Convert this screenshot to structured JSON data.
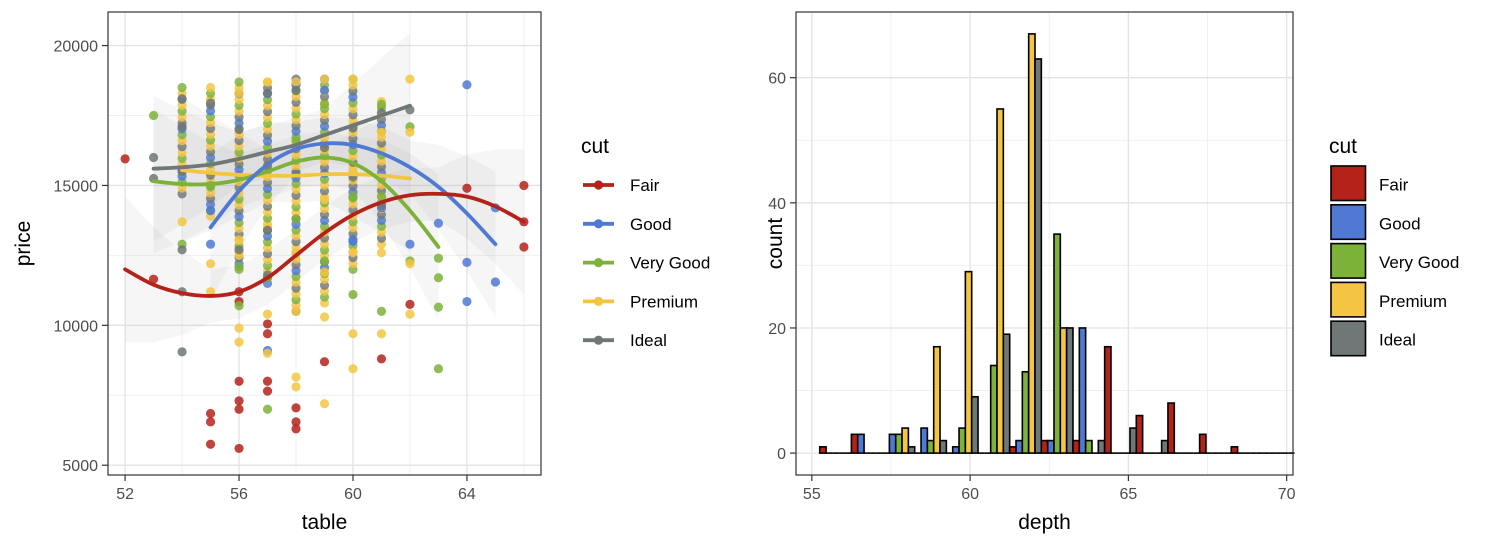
{
  "figure": {
    "legend_title": "cut"
  },
  "palette": {
    "Fair": "#B5221A",
    "Good": "#4F79D3",
    "Very Good": "#7CB13A",
    "Premium": "#F4C542",
    "Ideal": "#6F7777"
  },
  "chart_data": [
    {
      "type": "scatter",
      "panel": "left",
      "title": "",
      "xlabel": "table",
      "ylabel": "price",
      "xlim": [
        51.4,
        66.6
      ],
      "ylim": [
        4650,
        21200
      ],
      "xticks": [
        52,
        56,
        60,
        64
      ],
      "yticks": [
        5000,
        10000,
        15000,
        20000
      ],
      "grid": true,
      "legend": {
        "title": "cut",
        "position": "right",
        "entries": [
          "Fair",
          "Good",
          "Very Good",
          "Premium",
          "Ideal"
        ]
      },
      "series": [
        {
          "name": "Fair",
          "points": [
            [
              52,
              15950
            ],
            [
              53,
              11650
            ],
            [
              55,
              6850
            ],
            [
              55,
              6550
            ],
            [
              55,
              5750
            ],
            [
              56,
              10850
            ],
            [
              56,
              8000
            ],
            [
              56,
              7300
            ],
            [
              56,
              7000
            ],
            [
              56,
              5600
            ],
            [
              56,
              11200
            ],
            [
              57,
              10050
            ],
            [
              57,
              9700
            ],
            [
              57,
              8000
            ],
            [
              57,
              7650
            ],
            [
              58,
              7050
            ],
            [
              58,
              6550
            ],
            [
              58,
              6300
            ],
            [
              59,
              8700
            ],
            [
              61,
              8800
            ],
            [
              62,
              10750
            ],
            [
              64,
              14900
            ],
            [
              66,
              15000
            ],
            [
              66,
              13700
            ],
            [
              66,
              12800
            ]
          ],
          "smooth": [
            [
              52,
              12000
            ],
            [
              53,
              11450
            ],
            [
              54,
              11150
            ],
            [
              55,
              11050
            ],
            [
              56,
              11200
            ],
            [
              57,
              11700
            ],
            [
              58,
              12500
            ],
            [
              59,
              13300
            ],
            [
              60,
              13950
            ],
            [
              61,
              14400
            ],
            [
              62,
              14650
            ],
            [
              63,
              14700
            ],
            [
              64,
              14600
            ],
            [
              65,
              14250
            ],
            [
              66,
              13700
            ]
          ]
        },
        {
          "name": "Good",
          "points": [
            [
              55,
              14100
            ],
            [
              55,
              12900
            ],
            [
              57,
              9100
            ],
            [
              58,
              18650
            ],
            [
              59,
              18400
            ],
            [
              60,
              13000
            ],
            [
              61,
              14200
            ],
            [
              62,
              12900
            ],
            [
              63,
              13650
            ],
            [
              64,
              18600
            ],
            [
              64,
              12250
            ],
            [
              64,
              10850
            ],
            [
              65,
              11550
            ],
            [
              65,
              14200
            ]
          ],
          "smooth": [
            [
              55,
              13500
            ],
            [
              56,
              14800
            ],
            [
              57,
              15750
            ],
            [
              58,
              16300
            ],
            [
              59,
              16500
            ],
            [
              60,
              16450
            ],
            [
              61,
              16150
            ],
            [
              62,
              15650
            ],
            [
              63,
              14950
            ],
            [
              64,
              14000
            ],
            [
              65,
              12900
            ]
          ]
        },
        {
          "name": "Very Good",
          "points": [
            [
              53,
              17500
            ],
            [
              54,
              12900
            ],
            [
              55,
              15000
            ],
            [
              56,
              12100
            ],
            [
              56,
              10700
            ],
            [
              57,
              11700
            ],
            [
              57,
              7000
            ],
            [
              58,
              16600
            ],
            [
              58,
              13800
            ],
            [
              59,
              17900
            ],
            [
              59,
              12300
            ],
            [
              60,
              14600
            ],
            [
              60,
              11100
            ],
            [
              61,
              17900
            ],
            [
              61,
              14600
            ],
            [
              61,
              10500
            ],
            [
              62,
              17100
            ],
            [
              62,
              12300
            ],
            [
              63,
              12400
            ],
            [
              63,
              11700
            ],
            [
              63,
              10650
            ],
            [
              63,
              8450
            ]
          ],
          "smooth": [
            [
              53,
              15150
            ],
            [
              54,
              15050
            ],
            [
              55,
              15050
            ],
            [
              56,
              15200
            ],
            [
              57,
              15500
            ],
            [
              58,
              15850
            ],
            [
              59,
              16000
            ],
            [
              60,
              15800
            ],
            [
              61,
              15150
            ],
            [
              62,
              14100
            ],
            [
              63,
              12800
            ]
          ]
        },
        {
          "name": "Premium",
          "points": [
            [
              54,
              13700
            ],
            [
              55,
              12200
            ],
            [
              55,
              11200
            ],
            [
              56,
              18300
            ],
            [
              56,
              13050
            ],
            [
              56,
              12500
            ],
            [
              56,
              9900
            ],
            [
              56,
              9400
            ],
            [
              57,
              18700
            ],
            [
              57,
              13500
            ],
            [
              57,
              10400
            ],
            [
              57,
              9000
            ],
            [
              58,
              18700
            ],
            [
              58,
              12600
            ],
            [
              58,
              10500
            ],
            [
              58,
              8150
            ],
            [
              58,
              7800
            ],
            [
              59,
              18800
            ],
            [
              59,
              14500
            ],
            [
              59,
              11900
            ],
            [
              59,
              10300
            ],
            [
              59,
              7200
            ],
            [
              60,
              18800
            ],
            [
              60,
              15500
            ],
            [
              60,
              12600
            ],
            [
              60,
              9700
            ],
            [
              60,
              8450
            ],
            [
              61,
              16900
            ],
            [
              61,
              12600
            ],
            [
              61,
              9700
            ],
            [
              62,
              18800
            ],
            [
              62,
              16900
            ],
            [
              62,
              12200
            ],
            [
              62,
              10400
            ]
          ],
          "smooth": [
            [
              54,
              15550
            ],
            [
              55,
              15450
            ],
            [
              56,
              15380
            ],
            [
              57,
              15350
            ],
            [
              58,
              15350
            ],
            [
              59,
              15400
            ],
            [
              60,
              15400
            ],
            [
              61,
              15350
            ],
            [
              62,
              15250
            ]
          ]
        },
        {
          "name": "Ideal",
          "points": [
            [
              53,
              16000
            ],
            [
              53,
              15250
            ],
            [
              54,
              18100
            ],
            [
              54,
              17100
            ],
            [
              54,
              15500
            ],
            [
              54,
              12700
            ],
            [
              54,
              11200
            ],
            [
              54,
              9050
            ],
            [
              55,
              17950
            ],
            [
              56,
              17000
            ],
            [
              56,
              12700
            ],
            [
              57,
              18300
            ],
            [
              57,
              15700
            ],
            [
              57,
              13400
            ],
            [
              57,
              11800
            ],
            [
              58,
              18400
            ],
            [
              58,
              15400
            ],
            [
              59,
              16350
            ],
            [
              60,
              17050
            ],
            [
              60,
              15300
            ],
            [
              61,
              17600
            ],
            [
              61,
              14300
            ],
            [
              62,
              17700
            ]
          ],
          "smooth": [
            [
              53,
              15600
            ],
            [
              54,
              15650
            ],
            [
              55,
              15750
            ],
            [
              56,
              15950
            ],
            [
              57,
              16200
            ],
            [
              58,
              16450
            ],
            [
              59,
              16800
            ],
            [
              60,
              17150
            ],
            [
              61,
              17500
            ],
            [
              62,
              17850
            ]
          ]
        }
      ],
      "column_stacks": [
        {
          "x": 54,
          "ymin": 14700,
          "ymax": 18500
        },
        {
          "x": 55,
          "ymin": 13900,
          "ymax": 18500
        },
        {
          "x": 56,
          "ymin": 12000,
          "ymax": 18700
        },
        {
          "x": 57,
          "ymin": 11500,
          "ymax": 18700
        },
        {
          "x": 58,
          "ymin": 10500,
          "ymax": 18800
        },
        {
          "x": 59,
          "ymin": 10800,
          "ymax": 18800
        },
        {
          "x": 60,
          "ymin": 12000,
          "ymax": 18800
        },
        {
          "x": 61,
          "ymin": 12900,
          "ymax": 18000
        }
      ]
    },
    {
      "type": "bar",
      "panel": "right",
      "title": "",
      "xlabel": "depth",
      "ylabel": "count",
      "xlim": [
        54.5,
        70.2
      ],
      "ylim": [
        -3.5,
        70.5
      ],
      "xticks": [
        55,
        60,
        65,
        70
      ],
      "yticks": [
        0,
        20,
        40,
        60
      ],
      "grid": true,
      "legend": {
        "title": "cut",
        "position": "right",
        "entries": [
          "Fair",
          "Good",
          "Very Good",
          "Premium",
          "Ideal"
        ]
      },
      "categories": [
        55.75,
        56.75,
        57.75,
        58.75,
        59.75,
        60.75,
        61.75,
        62.75,
        63.75,
        64.75,
        65.75,
        66.75,
        67.75,
        68.75,
        69.75
      ],
      "series": [
        {
          "name": "Fair",
          "values": [
            1,
            3,
            0,
            0,
            0,
            0,
            1,
            2,
            2,
            17,
            6,
            8,
            3,
            1,
            0
          ]
        },
        {
          "name": "Good",
          "values": [
            0,
            3,
            3,
            4,
            1,
            0,
            2,
            2,
            20,
            0,
            0,
            0,
            0,
            0,
            0
          ]
        },
        {
          "name": "Very Good",
          "values": [
            0,
            0,
            3,
            2,
            4,
            14,
            13,
            35,
            2,
            0,
            0,
            0,
            0,
            0,
            0
          ]
        },
        {
          "name": "Premium",
          "values": [
            0,
            0,
            4,
            17,
            29,
            55,
            67,
            20,
            0,
            0,
            0,
            0,
            0,
            0,
            0
          ]
        },
        {
          "name": "Ideal",
          "values": [
            0,
            0,
            1,
            2,
            9,
            19,
            63,
            20,
            2,
            4,
            2,
            0,
            0,
            0,
            0
          ]
        }
      ]
    }
  ]
}
